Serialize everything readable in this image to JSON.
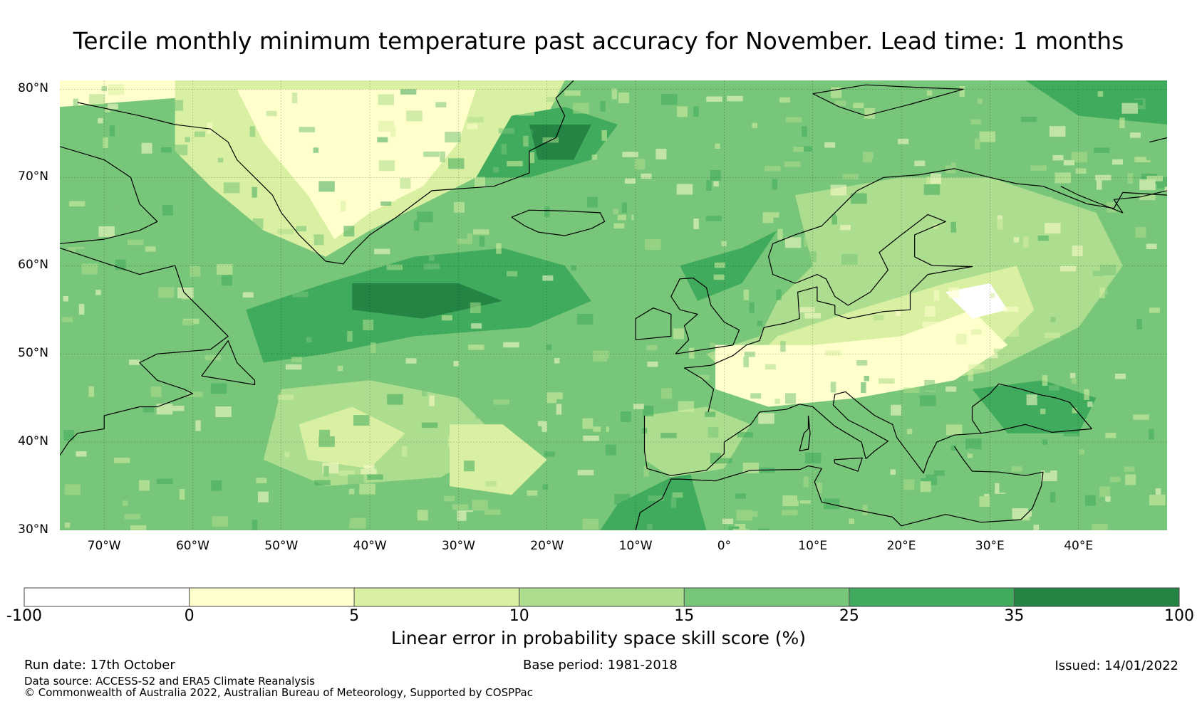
{
  "title": "Tercile monthly minimum temperature past accuracy for November. Lead time: 1 months",
  "map": {
    "extent": {
      "lon_min": -75,
      "lon_max": 50,
      "lat_min": 30,
      "lat_max": 81
    },
    "lat_labels": [
      {
        "value": 80,
        "text": "80°N"
      },
      {
        "value": 70,
        "text": "70°N"
      },
      {
        "value": 60,
        "text": "60°N"
      },
      {
        "value": 50,
        "text": "50°N"
      },
      {
        "value": 40,
        "text": "40°N"
      },
      {
        "value": 30,
        "text": "30°N"
      }
    ],
    "lon_labels": [
      {
        "value": -70,
        "text": "70°W"
      },
      {
        "value": -60,
        "text": "60°W"
      },
      {
        "value": -50,
        "text": "50°W"
      },
      {
        "value": -40,
        "text": "40°W"
      },
      {
        "value": -30,
        "text": "30°W"
      },
      {
        "value": -20,
        "text": "20°W"
      },
      {
        "value": -10,
        "text": "10°W"
      },
      {
        "value": 0,
        "text": "0°"
      },
      {
        "value": 10,
        "text": "10°E"
      },
      {
        "value": 20,
        "text": "20°E"
      },
      {
        "value": 30,
        "text": "30°E"
      },
      {
        "value": 40,
        "text": "40°E"
      }
    ],
    "colors": {
      "water_base": "#78c679",
      "bin_white": "#ffffff",
      "bin_0_5": "#ffffcc",
      "bin_5_10": "#d9f0a3",
      "bin_10_15": "#addd8e",
      "bin_15_25": "#78c679",
      "bin_25_35": "#41ab5d",
      "bin_35_100": "#238443",
      "coastline": "#000000"
    }
  },
  "colorbar": {
    "bins": [
      {
        "from": -100,
        "to": 0,
        "color": "#ffffff"
      },
      {
        "from": 0,
        "to": 5,
        "color": "#ffffcc"
      },
      {
        "from": 5,
        "to": 10,
        "color": "#d9f0a3"
      },
      {
        "from": 10,
        "to": 15,
        "color": "#addd8e"
      },
      {
        "from": 15,
        "to": 25,
        "color": "#78c679"
      },
      {
        "from": 25,
        "to": 35,
        "color": "#41ab5d"
      },
      {
        "from": 35,
        "to": 100,
        "color": "#238443"
      }
    ],
    "ticks": [
      "-100",
      "0",
      "5",
      "10",
      "15",
      "25",
      "35",
      "100"
    ],
    "label": "Linear error in probability space skill score (%)"
  },
  "footer": {
    "run_date": "Run date: 17th October",
    "base_period": "Base period: 1981-2018",
    "issued": "Issued: 14/01/2022",
    "data_source": "Data source: ACCESS-S2 and ERA5 Climate Reanalysis",
    "copyright": "© Commonwealth of Australia 2022, Australian Bureau of Meteorology, Supported by COSPPac"
  }
}
